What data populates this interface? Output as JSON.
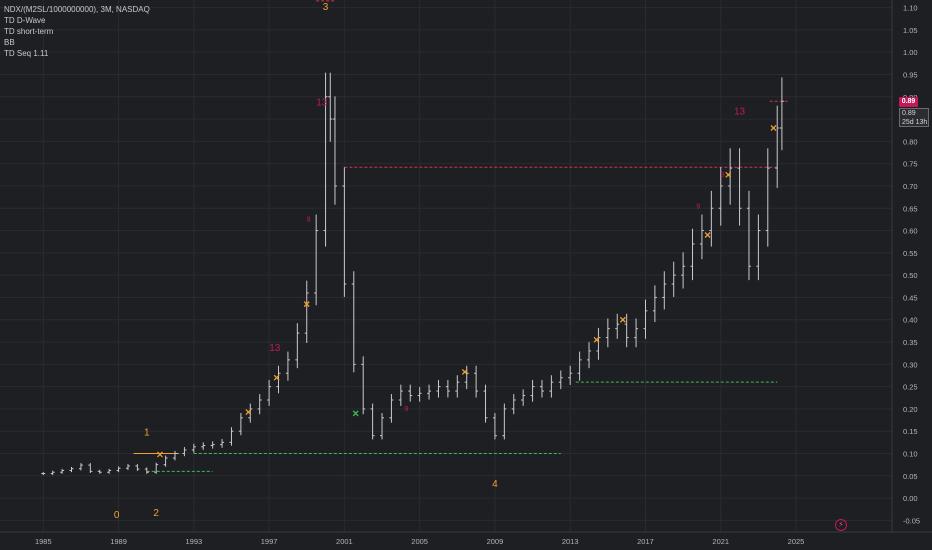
{
  "window": {
    "symbol_line": "NDX/(M2SL/1000000000), 3M, NASDAQ",
    "indicators": [
      "TD D-Wave",
      "TD short-term",
      "BB",
      "TD Seq 1.11"
    ]
  },
  "price_tag": {
    "value": "0.89",
    "color": "#c2185b"
  },
  "countdown_tag": {
    "value": "0.89",
    "remaining": "25d 13h"
  },
  "icons": {
    "bolt": "lightning-bolt-icon"
  },
  "colors": {
    "background": "#1e1f23",
    "bar": "#c9cacd",
    "wave_label": "#f0a030",
    "seq_red": "#c2185b",
    "seq_green": "#3fb950",
    "resist": "#d1344f",
    "support": "#3fb950",
    "axis_text": "#b2b5be"
  },
  "chart_data": {
    "type": "ohlc",
    "title": "",
    "x_axis": {
      "ticks": [
        "1985",
        "1989",
        "1993",
        "1997",
        "2001",
        "2005",
        "2009",
        "2013",
        "2017",
        "2021",
        "2025"
      ],
      "range": [
        1982.7,
        2030.1
      ]
    },
    "y_axis": {
      "ticks": [
        "1.10",
        "1.05",
        "1.00",
        "0.95",
        "0.90",
        "0.85",
        "0.80",
        "0.75",
        "0.70",
        "0.65",
        "0.60",
        "0.55",
        "0.50",
        "0.45",
        "0.40",
        "0.35",
        "0.30",
        "0.25",
        "0.20",
        "0.15",
        "0.10",
        "0.05",
        "0.00",
        "-0.05"
      ],
      "range": [
        -0.076,
        1.117
      ]
    },
    "grid": true,
    "legend": "top-left",
    "series": [
      {
        "points": [
          [
            1985.0,
            0.055
          ],
          [
            1985.5,
            0.058
          ],
          [
            1986.0,
            0.062
          ],
          [
            1986.5,
            0.066
          ],
          [
            1987.0,
            0.074
          ],
          [
            1987.5,
            0.06
          ],
          [
            1988.0,
            0.058
          ],
          [
            1988.5,
            0.062
          ],
          [
            1989.0,
            0.067
          ],
          [
            1989.5,
            0.072
          ],
          [
            1990.0,
            0.065
          ],
          [
            1990.5,
            0.058
          ],
          [
            1991.0,
            0.075
          ],
          [
            1991.5,
            0.09
          ],
          [
            1992.0,
            0.1
          ],
          [
            1992.5,
            0.108
          ],
          [
            1993.0,
            0.115
          ],
          [
            1993.5,
            0.118
          ],
          [
            1994.0,
            0.12
          ],
          [
            1994.5,
            0.125
          ],
          [
            1995.0,
            0.15
          ],
          [
            1995.5,
            0.18
          ],
          [
            1996.0,
            0.2
          ],
          [
            1996.5,
            0.22
          ],
          [
            1997.0,
            0.25
          ],
          [
            1997.5,
            0.28
          ],
          [
            1998.0,
            0.31
          ],
          [
            1998.5,
            0.37
          ],
          [
            1999.0,
            0.46
          ],
          [
            1999.5,
            0.6
          ],
          [
            2000.0,
            0.9
          ],
          [
            2000.25,
            0.85
          ],
          [
            2000.5,
            0.7
          ],
          [
            2001.0,
            0.48
          ],
          [
            2001.5,
            0.3
          ],
          [
            2002.0,
            0.2
          ],
          [
            2002.5,
            0.14
          ],
          [
            2003.0,
            0.18
          ],
          [
            2003.5,
            0.22
          ],
          [
            2004.0,
            0.24
          ],
          [
            2004.5,
            0.23
          ],
          [
            2005.0,
            0.235
          ],
          [
            2005.5,
            0.24
          ],
          [
            2006.0,
            0.25
          ],
          [
            2006.5,
            0.24
          ],
          [
            2007.0,
            0.26
          ],
          [
            2007.5,
            0.28
          ],
          [
            2008.0,
            0.24
          ],
          [
            2008.5,
            0.18
          ],
          [
            2009.0,
            0.14
          ],
          [
            2009.5,
            0.2
          ],
          [
            2010.0,
            0.22
          ],
          [
            2010.5,
            0.23
          ],
          [
            2011.0,
            0.25
          ],
          [
            2011.5,
            0.24
          ],
          [
            2012.0,
            0.26
          ],
          [
            2012.5,
            0.27
          ],
          [
            2013.0,
            0.28
          ],
          [
            2013.5,
            0.31
          ],
          [
            2014.0,
            0.33
          ],
          [
            2014.5,
            0.36
          ],
          [
            2015.0,
            0.38
          ],
          [
            2015.5,
            0.39
          ],
          [
            2016.0,
            0.36
          ],
          [
            2016.5,
            0.38
          ],
          [
            2017.0,
            0.42
          ],
          [
            2017.5,
            0.45
          ],
          [
            2018.0,
            0.48
          ],
          [
            2018.5,
            0.5
          ],
          [
            2019.0,
            0.52
          ],
          [
            2019.5,
            0.57
          ],
          [
            2020.0,
            0.6
          ],
          [
            2020.5,
            0.65
          ],
          [
            2021.0,
            0.7
          ],
          [
            2021.5,
            0.74
          ],
          [
            2022.0,
            0.65
          ],
          [
            2022.5,
            0.52
          ],
          [
            2023.0,
            0.6
          ],
          [
            2023.5,
            0.74
          ],
          [
            2024.0,
            0.83
          ],
          [
            2024.25,
            0.89
          ]
        ]
      }
    ],
    "wave_labels": [
      {
        "text": "0",
        "x": 1988.9,
        "y": -0.045
      },
      {
        "text": "1",
        "x": 1990.5,
        "y": 0.14
      },
      {
        "text": "2",
        "x": 1991.0,
        "y": -0.04
      },
      {
        "text": "3",
        "x": 2000.0,
        "y": 1.095
      },
      {
        "text": "4",
        "x": 2009.0,
        "y": 0.025
      }
    ],
    "seq_labels": [
      {
        "text": "13",
        "x": 1997.3,
        "y": 0.33,
        "color": "red"
      },
      {
        "text": "13",
        "x": 1999.8,
        "y": 0.88,
        "color": "red"
      },
      {
        "text": "13",
        "x": 2022.0,
        "y": 0.86,
        "color": "red"
      },
      {
        "text": "9",
        "x": 1999.1,
        "y": 0.62,
        "color": "red"
      },
      {
        "text": "9",
        "x": 2004.3,
        "y": 0.195,
        "color": "red"
      },
      {
        "text": "9",
        "x": 2021.1,
        "y": 0.72,
        "color": "red"
      },
      {
        "text": "9",
        "x": 2019.8,
        "y": 0.65,
        "color": "red"
      }
    ],
    "cross_markers": [
      {
        "x": 1991.2,
        "y": 0.098,
        "color": "orange"
      },
      {
        "x": 1995.9,
        "y": 0.193,
        "color": "orange"
      },
      {
        "x": 1997.4,
        "y": 0.27,
        "color": "orange"
      },
      {
        "x": 1999.0,
        "y": 0.435,
        "color": "orange"
      },
      {
        "x": 2001.6,
        "y": 0.19,
        "color": "green"
      },
      {
        "x": 2007.4,
        "y": 0.283,
        "color": "orange"
      },
      {
        "x": 2014.4,
        "y": 0.355,
        "color": "orange"
      },
      {
        "x": 2015.8,
        "y": 0.4,
        "color": "orange"
      },
      {
        "x": 2020.3,
        "y": 0.59,
        "color": "orange"
      },
      {
        "x": 2021.4,
        "y": 0.725,
        "color": "orange"
      },
      {
        "x": 2023.8,
        "y": 0.83,
        "color": "orange"
      }
    ],
    "levels": [
      {
        "from": 2001.0,
        "to": 2024.0,
        "y": 0.742,
        "color": "resist"
      },
      {
        "from": 1999.5,
        "to": 2000.5,
        "y": 1.115,
        "color": "resist"
      },
      {
        "from": 2023.6,
        "to": 2024.6,
        "y": 0.89,
        "color": "resist"
      },
      {
        "from": 1993.0,
        "to": 2012.5,
        "y": 0.1,
        "color": "support"
      },
      {
        "from": 1990.5,
        "to": 1994.0,
        "y": 0.06,
        "color": "support"
      },
      {
        "from": 2013.3,
        "to": 2024.0,
        "y": 0.26,
        "color": "support"
      },
      {
        "from": 1989.8,
        "to": 1992.2,
        "y": 0.1,
        "color": "orange"
      }
    ]
  }
}
